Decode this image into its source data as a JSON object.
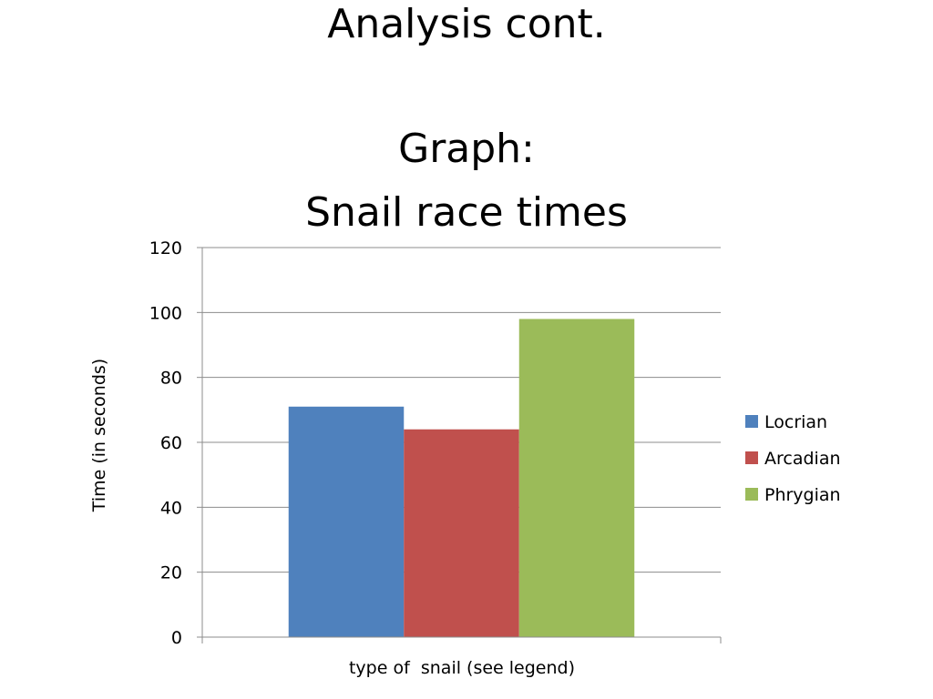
{
  "slide": {
    "title": "Analysis cont.",
    "subtitle_line1": "Graph:",
    "subtitle_line2": "Snail race times"
  },
  "chart_data": {
    "type": "bar",
    "categories": [
      ""
    ],
    "series": [
      {
        "name": "Locrian",
        "values": [
          71
        ],
        "color": "#4f81bd"
      },
      {
        "name": "Arcadian",
        "values": [
          64
        ],
        "color": "#c0504d"
      },
      {
        "name": "Phrygian",
        "values": [
          98
        ],
        "color": "#9bbb59"
      }
    ],
    "xlabel": "type of  snail (see legend)",
    "ylabel": "Time (in seconds)",
    "ylim": [
      0,
      120
    ],
    "yticks": [
      0,
      20,
      40,
      60,
      80,
      100,
      120
    ],
    "grid": true,
    "legend_position": "right",
    "gridline_color": "#8c8c8c",
    "axis_color": "#8c8c8c"
  }
}
